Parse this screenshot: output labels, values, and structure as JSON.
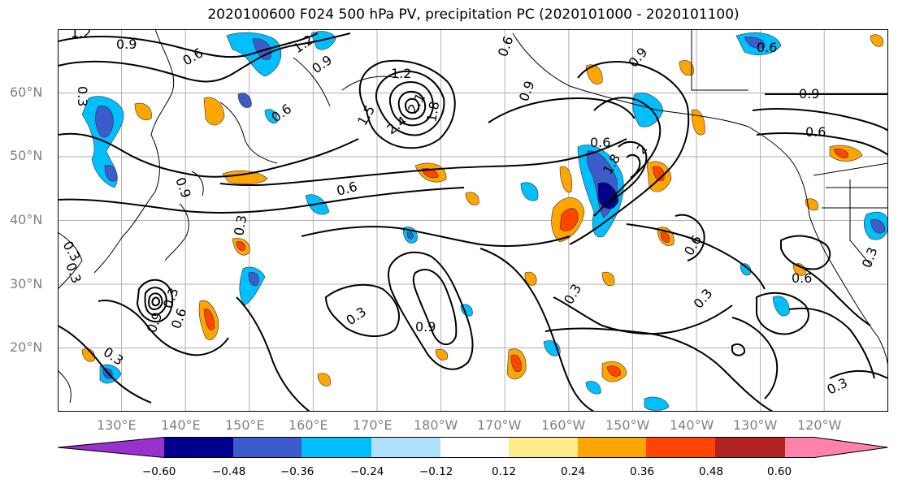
{
  "title": "2020100600 F024 500 hPa PV, precipitation PC (2020101000 - 2020101100)",
  "lat_labels": [
    "60°N",
    "50°N",
    "40°N",
    "30°N",
    "20°N"
  ],
  "lon_labels": [
    "130°E",
    "140°E",
    "150°E",
    "160°E",
    "170°E",
    "180°W",
    "170°W",
    "160°W",
    "150°W",
    "140°W",
    "130°W",
    "120°W"
  ],
  "contour_labels": {
    "c_1_2_nw": "1.2",
    "c_0_9_nw": "0.9",
    "c_0_6_nw": "0.6",
    "c_1_2_kam": "1.2",
    "c_0_9_kam": "0.9",
    "c_0_6_okh": "0.6",
    "c_1_2_low": "1.2",
    "c_2_4_low": "2.4",
    "c_2_1_low": "2.1",
    "c_1_8_low": "1.8",
    "c_1_5_low": "1.5",
    "c_0_6_mid": "0.6",
    "c_0_6_ne": "0.6",
    "c_0_9_gulf": "0.9",
    "c_0_9_east": "0.9",
    "c_0_6_east": "0.6",
    "c_0_3_west": "0.3",
    "c_0_9_jp": "0.9",
    "c_0_9_jet": "0.9",
    "c_0_3_sub": "0.3",
    "c_0_3_hawaii": "0.3",
    "c_0_6_calif": "0.6",
    "c_0_3_calif": "0.3",
    "c_0_3_ca_coast": "0.3",
    "c_0_3_se": "0.3",
    "c_0_6_ne2": "0.6",
    "c_0_3_scs": "0.3",
    "c_0_3_ty": "0.3",
    "c_0_9_ty": "0.9",
    "c_1_8_trough": "1.8",
    "c_2_trough": "2",
    "c_0_3_jet": "0.3",
    "c_0_3_nw": "0.3",
    "c_0_6_jpn": "0.6",
    "c_0_6_ty": "0.6",
    "c_0_3_sw": "0.3",
    "c_0_9_alaska": "0.9",
    "c_0_6_pac": "0.6"
  },
  "colorbar": {
    "colors": [
      "#9932cc",
      "#00008b",
      "#3d5ccc",
      "#00bfff",
      "#b0e2ff",
      "#ffffff",
      "#ffec8b",
      "#ffa500",
      "#ff4500",
      "#b22222",
      "#ff82ab"
    ],
    "tick_labels": [
      "−0.60",
      "−0.48",
      "−0.36",
      "−0.24",
      "−0.12",
      "0.12",
      "0.24",
      "0.36",
      "0.48",
      "0.60"
    ]
  }
}
